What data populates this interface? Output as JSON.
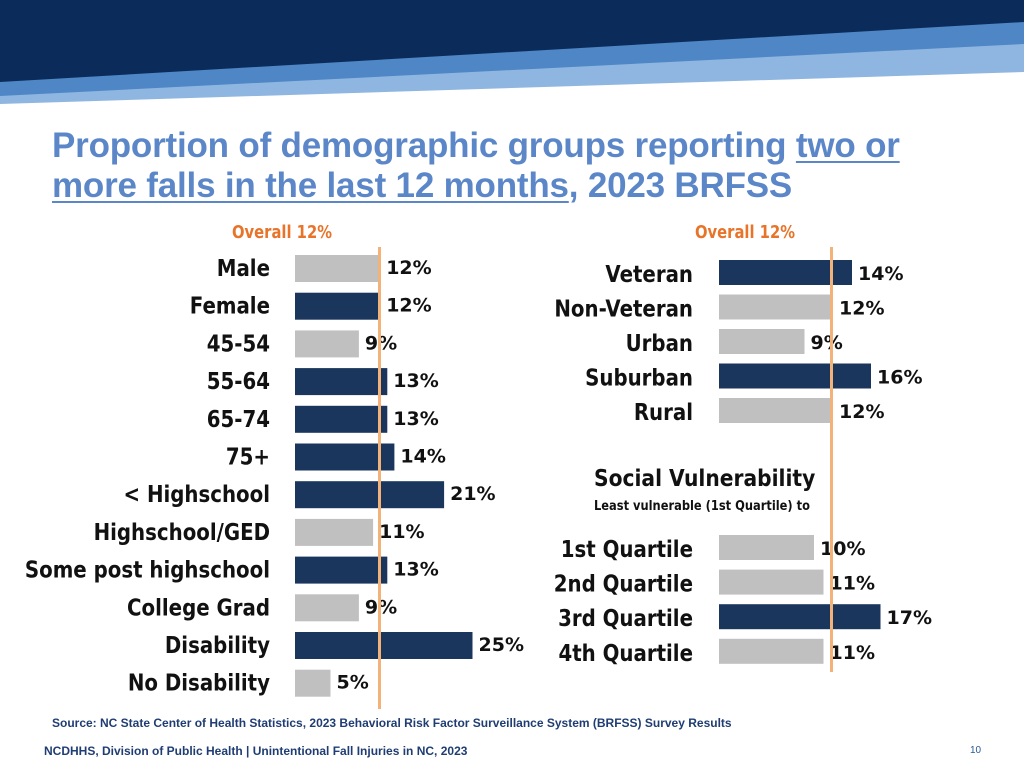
{
  "title": {
    "part1": "Proportion of demographic groups reporting ",
    "underlined": "two or more falls in the last 12 months",
    "part2": ", 2023 BRFSS"
  },
  "colors": {
    "dark_bar": "#1b365d",
    "light_bar": "#c0c0c0",
    "overall_line": "#f2b27a",
    "title": "#5b87c9",
    "overall_label": "#e8742a"
  },
  "chart_data": [
    {
      "type": "bar",
      "orientation": "horizontal",
      "overall_label": "Overall 12%",
      "overall_value": 12,
      "categories": [
        "Male",
        "Female",
        "45-54",
        "55-64",
        "65-74",
        "75+",
        "< Highschool",
        "Highschool/GED",
        "Some post highschool",
        "College Grad",
        "Disability",
        "No Disability"
      ],
      "values": [
        12,
        12,
        9,
        13,
        13,
        14,
        21,
        11,
        13,
        9,
        25,
        5
      ],
      "labels": [
        "12%",
        "12%",
        "9%",
        "13%",
        "13%",
        "14%",
        "21%",
        "11%",
        "13%",
        "9%",
        "25%",
        "5%"
      ],
      "highlight": [
        false,
        true,
        false,
        true,
        true,
        true,
        true,
        false,
        true,
        false,
        true,
        false
      ],
      "unit": "%"
    },
    {
      "type": "bar",
      "orientation": "horizontal",
      "overall_label": "Overall 12%",
      "overall_value": 12,
      "categories": [
        "Veteran",
        "Non-Veteran",
        "Urban",
        "Suburban",
        "Rural"
      ],
      "values": [
        14,
        12,
        9,
        16,
        12
      ],
      "labels": [
        "14%",
        "12%",
        "9%",
        "16%",
        "12%"
      ],
      "highlight": [
        true,
        false,
        false,
        true,
        false
      ],
      "unit": "%"
    },
    {
      "type": "bar",
      "orientation": "horizontal",
      "title": "Social Vulnerability",
      "subtitle": "Least  vulnerable (1st Quartile) to",
      "overall_value": 12,
      "categories": [
        "1st Quartile",
        "2nd Quartile",
        "3rd Quartile",
        "4th Quartile"
      ],
      "values": [
        10,
        11,
        17,
        11
      ],
      "labels": [
        "10%",
        "11%",
        "17%",
        "11%"
      ],
      "highlight": [
        false,
        false,
        true,
        false
      ],
      "unit": "%"
    }
  ],
  "source": "Source: NC State Center of Health Statistics, 2023 Behavioral Risk Factor Surveillance System (BRFSS) Survey Results",
  "footer": "NCDHHS, Division of Public Health | Unintentional Fall Injuries in NC, 2023",
  "page_number": "10"
}
